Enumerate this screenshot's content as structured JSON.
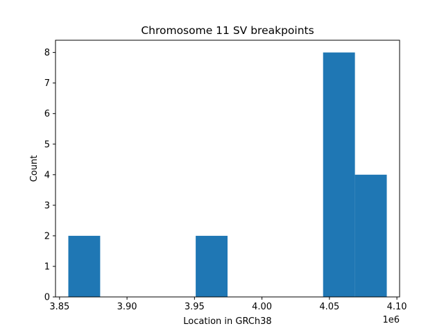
{
  "chart_data": {
    "type": "bar",
    "title": "Chromosome 11 SV breakpoints",
    "xlabel": "Location in GRCh38",
    "ylabel": "Count",
    "x_offset_label": "1e6",
    "bin_edges": [
      3.8565,
      3.8801,
      3.9037,
      3.9273,
      3.9509,
      3.9745,
      3.9981,
      4.0217,
      4.0453,
      4.0689,
      4.0925
    ],
    "values": [
      2,
      0,
      0,
      0,
      2,
      0,
      0,
      0,
      8,
      4
    ],
    "xlim": [
      3.847,
      4.102
    ],
    "ylim": [
      0,
      8.4
    ],
    "x_ticks": [
      "3.85",
      "3.90",
      "3.95",
      "4.00",
      "4.05",
      "4.10"
    ],
    "x_tick_values": [
      3.85,
      3.9,
      3.95,
      4.0,
      4.05,
      4.1
    ],
    "y_ticks": [
      "0",
      "1",
      "2",
      "3",
      "4",
      "5",
      "6",
      "7",
      "8"
    ],
    "y_tick_values": [
      0,
      1,
      2,
      3,
      4,
      5,
      6,
      7,
      8
    ],
    "bar_color": "#1f77b4",
    "grid": false
  }
}
